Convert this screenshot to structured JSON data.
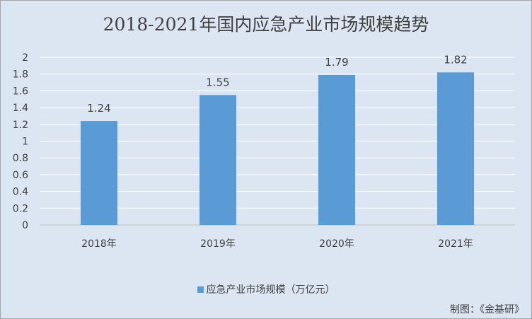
{
  "chart_data": {
    "type": "bar",
    "title": "2018-2021年国内应急产业市场规模趋势",
    "categories": [
      "2018年",
      "2019年",
      "2020年",
      "2021年"
    ],
    "series": [
      {
        "name": "应急产业市场规模（万亿元）",
        "values": [
          1.24,
          1.55,
          1.79,
          1.82
        ]
      }
    ],
    "data_labels": [
      "1.24",
      "1.55",
      "1.79",
      "1.82"
    ],
    "y_ticks": [
      "0",
      "0.2",
      "0.4",
      "0.6",
      "0.8",
      "1",
      "1.2",
      "1.4",
      "1.6",
      "1.8",
      "2"
    ],
    "ylim": [
      0,
      2
    ],
    "grid": true,
    "legend_position": "bottom",
    "bar_color": "#5b9bd5",
    "grid_color": "#ffffff"
  },
  "source_note": "制图：《金基研》"
}
